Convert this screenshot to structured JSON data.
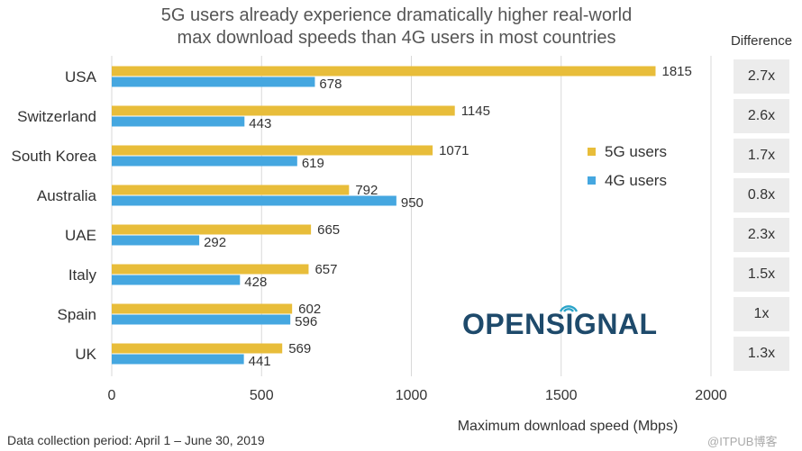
{
  "title_line1": "5G users already experience dramatically higher real-world",
  "title_line2": "max download speeds than 4G users in most countries",
  "difference_header": "Difference",
  "logo_text": "OPENSIGNAL",
  "footer": "Data collection period: April 1 – June 30, 2019",
  "watermark": "@ITPUB博客",
  "chart_data": {
    "type": "bar",
    "orientation": "horizontal",
    "categories": [
      "USA",
      "Switzerland",
      "South Korea",
      "Australia",
      "UAE",
      "Italy",
      "Spain",
      "UK"
    ],
    "series": [
      {
        "name": "5G users",
        "color": "#e8bd3a",
        "values": [
          1815,
          1145,
          1071,
          792,
          665,
          657,
          602,
          569
        ]
      },
      {
        "name": "4G users",
        "color": "#45a7e0",
        "values": [
          678,
          443,
          619,
          950,
          292,
          428,
          596,
          441
        ]
      }
    ],
    "differences": [
      "2.7x",
      "2.6x",
      "1.7x",
      "0.8x",
      "2.3x",
      "1.5x",
      "1x",
      "1.3x"
    ],
    "xlabel": "Maximum download speed  (Mbps)",
    "xlim": [
      0,
      2000
    ],
    "xticks": [
      0,
      500,
      1000,
      1500,
      2000
    ],
    "grid": true,
    "legend_position": "right-middle"
  }
}
